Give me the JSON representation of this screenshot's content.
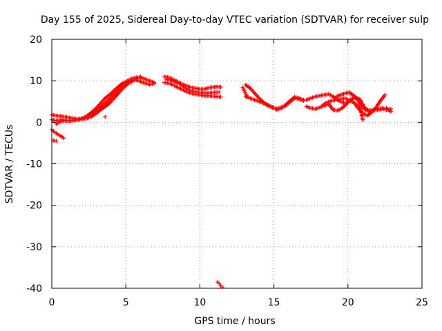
{
  "chart_data": {
    "type": "scatter",
    "title": "Day 155 of 2025, Sidereal Day-to-day VTEC variation (SDTVAR) for receiver sulp",
    "xlabel": "GPS time / hours",
    "ylabel": "SDTVAR / TECUs",
    "xlim": [
      0,
      25
    ],
    "ylim": [
      -40,
      20
    ],
    "xticks": [
      "0",
      "5",
      "10",
      "15",
      "20",
      "25"
    ],
    "yticks": [
      "-40",
      "-30",
      "-20",
      "-10",
      "0",
      "10",
      "20"
    ],
    "grid": true,
    "marker": "plus",
    "color": "#ff0000",
    "series": [
      {
        "name": "SDTVAR",
        "segments": [
          {
            "x": [
              0.0,
              0.3,
              0.6,
              0.9,
              1.2,
              1.5,
              1.8,
              2.1,
              2.4,
              2.7,
              3.0,
              3.3,
              3.6,
              3.9,
              4.2,
              4.5,
              4.8,
              5.1,
              5.4,
              5.7,
              6.0,
              6.3,
              6.6,
              6.9
            ],
            "y": [
              1.8,
              1.6,
              1.5,
              1.3,
              1.1,
              0.9,
              0.8,
              1.0,
              1.6,
              2.4,
              3.4,
              4.6,
              5.8,
              6.6,
              7.6,
              8.6,
              9.4,
              10.0,
              10.5,
              10.8,
              10.8,
              10.4,
              10.0,
              9.6
            ]
          },
          {
            "x": [
              0.0,
              0.3,
              0.6,
              0.9,
              1.2,
              1.5,
              1.8,
              2.1,
              2.4,
              2.7,
              3.0,
              3.3,
              3.6,
              3.9,
              4.2,
              4.5,
              4.8,
              5.1,
              5.4,
              5.7,
              6.0,
              6.3,
              6.6,
              6.9
            ],
            "y": [
              0.6,
              0.4,
              0.6,
              0.5,
              0.4,
              0.5,
              0.7,
              1.0,
              1.4,
              2.0,
              2.8,
              3.6,
              4.6,
              5.6,
              6.6,
              7.8,
              8.8,
              9.6,
              10.1,
              10.2,
              9.8,
              9.4,
              9.1,
              9.3
            ]
          },
          {
            "x": [
              0.3,
              0.6,
              0.9,
              1.2,
              1.5,
              1.8,
              2.1,
              2.4,
              2.7,
              3.0,
              3.3,
              3.6,
              3.9,
              4.2,
              4.5,
              4.8,
              5.1,
              5.4,
              5.7,
              6.0
            ],
            "y": [
              -0.4,
              0.2,
              0.4,
              0.3,
              0.5,
              0.6,
              0.8,
              1.0,
              1.4,
              2.2,
              3.0,
              3.8,
              4.6,
              5.8,
              7.0,
              8.2,
              9.2,
              9.8,
              10.4,
              11.0
            ]
          },
          {
            "x": [
              0.0,
              0.2,
              0.4,
              0.6,
              0.8
            ],
            "y": [
              -1.8,
              -2.4,
              -2.9,
              -3.3,
              -3.8
            ]
          },
          {
            "x": [
              0.1,
              0.3
            ],
            "y": [
              -4.4,
              -4.5
            ]
          },
          {
            "x": [
              3.6
            ],
            "y": [
              1.3
            ]
          },
          {
            "x": [
              7.6,
              7.9,
              8.2,
              8.5,
              8.8,
              9.1,
              9.4,
              9.7,
              10.0,
              10.3,
              10.6,
              10.9,
              11.2,
              11.4
            ],
            "y": [
              11.0,
              10.8,
              10.3,
              9.8,
              9.2,
              8.8,
              8.4,
              8.2,
              8.0,
              8.0,
              8.3,
              8.5,
              8.6,
              8.5
            ]
          },
          {
            "x": [
              7.6,
              7.9,
              8.2,
              8.5,
              8.8,
              9.1,
              9.4,
              9.7,
              10.0,
              10.3,
              10.6,
              10.9,
              11.2,
              11.4
            ],
            "y": [
              9.6,
              9.4,
              9.0,
              8.4,
              7.9,
              7.4,
              7.0,
              6.8,
              6.6,
              6.4,
              6.4,
              6.3,
              6.2,
              6.1
            ]
          },
          {
            "x": [
              7.7,
              8.0,
              8.3,
              8.6,
              8.9,
              9.2,
              9.5,
              9.8,
              10.1,
              10.4,
              10.7,
              11.0,
              11.3
            ],
            "y": [
              10.4,
              10.2,
              9.8,
              9.3,
              8.6,
              7.9,
              7.5,
              7.3,
              7.1,
              7.0,
              7.1,
              7.2,
              7.3
            ]
          },
          {
            "x": [
              11.2,
              11.3,
              11.4,
              11.5
            ],
            "y": [
              -38.5,
              -38.9,
              -39.3,
              -39.7
            ]
          },
          {
            "x": [
              12.9,
              13.0,
              13.1,
              13.2
            ],
            "y": [
              8.4,
              7.6,
              6.8,
              6.0
            ]
          },
          {
            "x": [
              13.1,
              13.4,
              13.7,
              14.0,
              14.3,
              14.6,
              14.9,
              15.2,
              15.5,
              15.8,
              16.1,
              16.4,
              16.7,
              17.0
            ],
            "y": [
              9.0,
              8.2,
              7.0,
              5.8,
              4.8,
              4.0,
              3.5,
              3.3,
              3.6,
              4.2,
              5.2,
              6.1,
              5.8,
              5.4
            ]
          },
          {
            "x": [
              13.1,
              13.4,
              13.7,
              14.0,
              14.3,
              14.6,
              14.9,
              15.2,
              15.5,
              15.8,
              16.1,
              16.4,
              16.7,
              17.0
            ],
            "y": [
              6.2,
              5.8,
              5.4,
              5.0,
              4.6,
              4.2,
              3.7,
              3.0,
              3.4,
              4.0,
              5.0,
              5.8,
              5.6,
              5.2
            ]
          },
          {
            "x": [
              17.2,
              17.5,
              17.8,
              18.1,
              18.4,
              18.7,
              19.0,
              19.3,
              19.6,
              19.9,
              20.2,
              20.5,
              20.8,
              21.1,
              21.4,
              21.7,
              22.0,
              22.3,
              22.6,
              22.9
            ],
            "y": [
              5.4,
              5.8,
              6.2,
              6.4,
              6.6,
              6.8,
              6.2,
              5.4,
              4.8,
              4.6,
              5.4,
              6.0,
              5.6,
              3.6,
              2.8,
              3.0,
              3.2,
              3.4,
              3.0,
              3.2
            ]
          },
          {
            "x": [
              17.2,
              17.5,
              17.8,
              18.1,
              18.4,
              18.7,
              19.0,
              19.3,
              19.6,
              19.9,
              20.2,
              20.5,
              20.8,
              21.1,
              21.4,
              21.7,
              22.0,
              22.3,
              22.6,
              22.9
            ],
            "y": [
              3.8,
              3.4,
              3.2,
              3.6,
              4.0,
              4.4,
              3.0,
              2.8,
              3.4,
              4.4,
              5.6,
              5.8,
              5.2,
              3.2,
              2.6,
              2.8,
              3.0,
              3.2,
              3.4,
              2.6
            ]
          },
          {
            "x": [
              18.3,
              18.6,
              18.9,
              19.2,
              19.5,
              19.8,
              20.1,
              20.4,
              20.7,
              21.0,
              21.3,
              21.6,
              21.9,
              22.2,
              22.5
            ],
            "y": [
              4.2,
              4.8,
              5.2,
              5.4,
              5.6,
              5.8,
              5.2,
              4.8,
              3.4,
              2.2,
              1.6,
              2.4,
              3.6,
              5.2,
              6.6
            ]
          },
          {
            "x": [
              19.2,
              19.5,
              19.8,
              20.1,
              20.4,
              20.7,
              21.0
            ],
            "y": [
              6.2,
              6.6,
              7.0,
              7.2,
              6.4,
              5.4,
              0.6
            ]
          }
        ]
      }
    ]
  }
}
